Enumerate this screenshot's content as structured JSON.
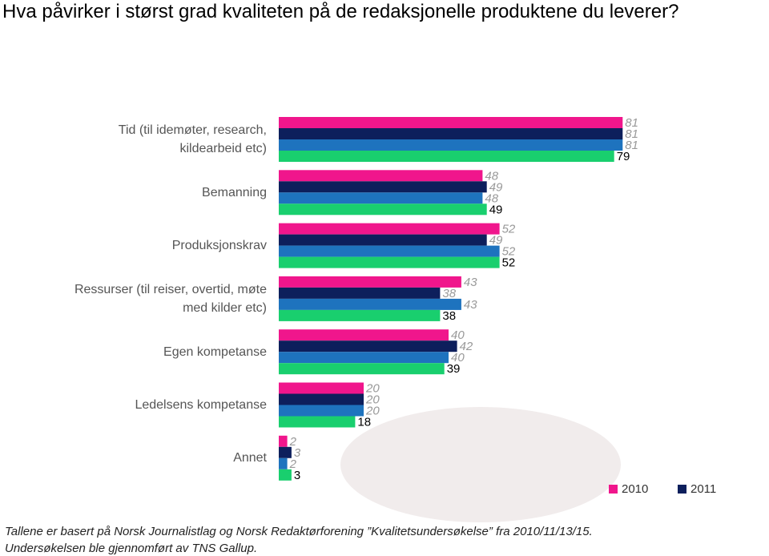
{
  "chart_data": {
    "type": "barh",
    "title": "Hva påvirker i størst grad kvaliteten på de redaksjonelle produktene du leverer?",
    "categories": [
      "Tid (til idemøter, research, kildearbeid etc)",
      "Bemanning",
      "Produksjonskrav",
      "Ressurser (til reiser, overtid, møte med kilder etc)",
      "Egen kompetanse",
      "Ledelsens kompetanse",
      "Annet"
    ],
    "series": [
      {
        "name": "2010",
        "color": "#f0168c",
        "values": [
          81,
          48,
          52,
          43,
          40,
          20,
          2
        ]
      },
      {
        "name": "2011",
        "color": "#0d1f5c",
        "values": [
          81,
          49,
          49,
          38,
          42,
          20,
          3
        ]
      },
      {
        "color": "#1e73be",
        "values": [
          81,
          48,
          52,
          43,
          40,
          20,
          2
        ]
      },
      {
        "color": "#19cf6e",
        "values": [
          79,
          49,
          52,
          38,
          39,
          18,
          3
        ]
      }
    ],
    "xlim": [
      0,
      100
    ],
    "legend": "bottom-right",
    "notes": [
      "Tallene er basert på Norsk Journalistlag og Norsk Redaktørforening ”Kvalitetsundersøkelse” fra 2010/11/13/15.",
      "Undersøkelsen ble gjennomført av TNS Gallup."
    ]
  }
}
